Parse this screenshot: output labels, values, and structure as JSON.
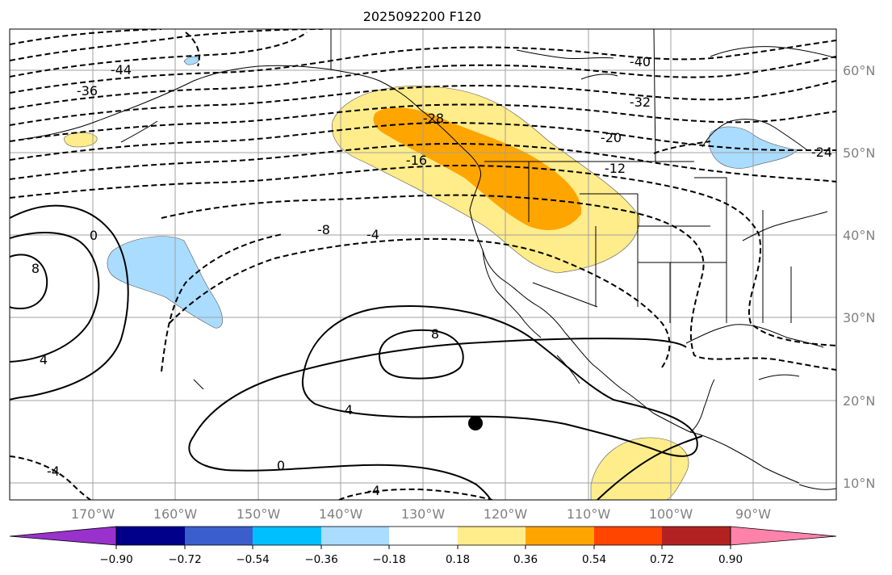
{
  "title": "2025092200 F120",
  "map": {
    "lon_ticks": [
      "170°W",
      "160°W",
      "150°W",
      "140°W",
      "130°W",
      "120°W",
      "110°W",
      "100°W",
      "90°W"
    ],
    "lat_ticks": [
      "60°N",
      "50°N",
      "40°N",
      "30°N",
      "20°N",
      "10°N"
    ],
    "contour_labels": [
      "-44",
      "-36",
      "-40",
      "-32",
      "-28",
      "-20",
      "-24",
      "-16",
      "-12",
      "-8",
      "-4",
      "0",
      "8",
      "4",
      "8",
      "4",
      "0",
      "-4",
      "-4"
    ],
    "shading": {
      "positive_colors": [
        "#ffec8b",
        "#ffa500"
      ],
      "negative_colors": [
        "#aadcff"
      ]
    },
    "marker": "black-dot"
  },
  "colorbar": {
    "colors": [
      "#9932cc",
      "#00008b",
      "#3a5fcd",
      "#00bfff",
      "#aadcff",
      "#ffffff",
      "#ffec8b",
      "#ffa500",
      "#ff4500",
      "#b22222",
      "#ff82ab"
    ],
    "tick_labels": [
      "−0.90",
      "−0.72",
      "−0.54",
      "−0.36",
      "−0.18",
      "0.18",
      "0.36",
      "0.54",
      "0.72",
      "0.90"
    ]
  }
}
